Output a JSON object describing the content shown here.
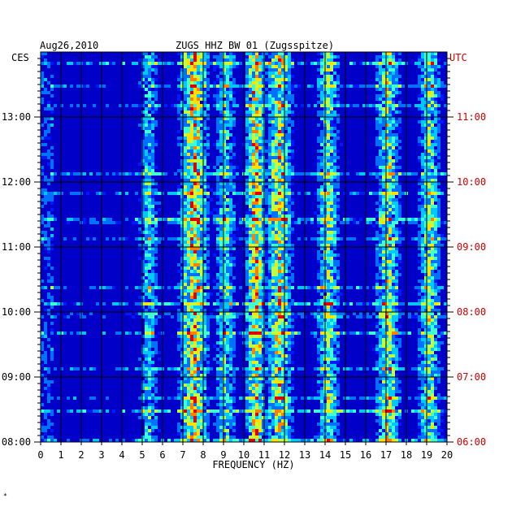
{
  "header": {
    "date": "Aug26,2010",
    "station": "ZUGS HHZ BW 01 (Zugsspitze)"
  },
  "left_axis_unit": "CES",
  "right_axis_unit": "UTC",
  "colors": {
    "left_labels": "#000000",
    "right_labels": "#cc0000",
    "background": "#0000c8",
    "grid": "#000000"
  },
  "corner_mark": "*",
  "chart_data": {
    "type": "heatmap",
    "title": "ZUGS HHZ BW 01 (Zugsspitze)",
    "subtitle": "Aug26,2010",
    "xlabel": "FREQUENCY (HZ)",
    "xlim": [
      0,
      20
    ],
    "x_ticks": [
      "0",
      "1",
      "2",
      "3",
      "4",
      "5",
      "6",
      "7",
      "8",
      "9",
      "10",
      "11",
      "12",
      "13",
      "14",
      "15",
      "16",
      "17",
      "18",
      "19",
      "20"
    ],
    "left_time_labels": [
      "13:00",
      "12:00",
      "11:00",
      "10:00",
      "09:00",
      "08:00"
    ],
    "right_time_labels": [
      "11:00",
      "10:00",
      "09:00",
      "08:00",
      "07:00",
      "06:00"
    ],
    "time_range_local": [
      "08:00",
      "14:00"
    ],
    "grid": true,
    "colormap": [
      "#0000c8",
      "#0018ff",
      "#0070ff",
      "#00c8ff",
      "#40ffd0",
      "#c0ff40",
      "#ffe000",
      "#ff8000",
      "#e00000"
    ],
    "energy_bands_hz": [
      {
        "low": 5.0,
        "high": 5.6,
        "level": 0.45
      },
      {
        "low": 7.0,
        "high": 8.1,
        "level": 0.85
      },
      {
        "low": 8.8,
        "high": 9.4,
        "level": 0.5
      },
      {
        "low": 10.3,
        "high": 10.9,
        "level": 0.85
      },
      {
        "low": 11.3,
        "high": 12.2,
        "level": 0.75
      },
      {
        "low": 13.8,
        "high": 14.5,
        "level": 0.6
      },
      {
        "low": 16.7,
        "high": 17.5,
        "level": 0.7
      },
      {
        "low": 18.8,
        "high": 19.5,
        "level": 0.6
      }
    ]
  }
}
